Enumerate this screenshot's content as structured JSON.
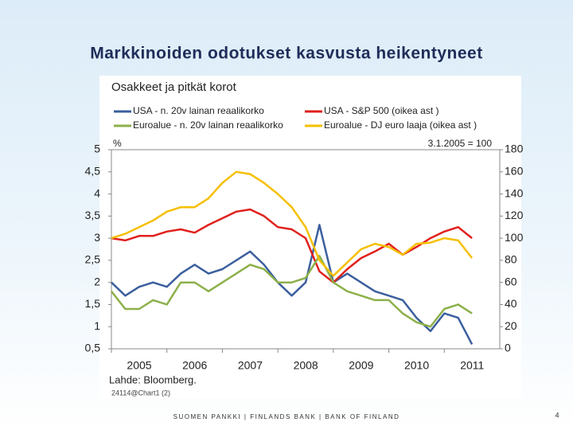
{
  "slide_title": "Markkinoiden odotukset kasvusta heikentyneet",
  "footer": "SUOMEN PANKKI | FINLANDS BANK | BANK OF FINLAND",
  "page_number": "4",
  "chart_data": {
    "type": "line",
    "title": "Osakkeet ja pitkät korot",
    "y_label": "%",
    "y2_label": "3.1.2005 = 100",
    "source": "Lahde: Bloomberg.",
    "chart_id": "24114@Chart1 (2)",
    "x": [
      2005,
      2005.25,
      2005.5,
      2005.75,
      2006,
      2006.25,
      2006.5,
      2006.75,
      2007,
      2007.25,
      2007.5,
      2007.75,
      2008,
      2008.25,
      2008.5,
      2008.75,
      2009,
      2009.25,
      2009.5,
      2009.75,
      2010,
      2010.25,
      2010.5,
      2010.75,
      2011,
      2011.25,
      2011.5
    ],
    "xlim": [
      2005,
      2012
    ],
    "xticks": [
      2005,
      2006,
      2007,
      2008,
      2009,
      2010,
      2011
    ],
    "ylim": [
      0.5,
      5
    ],
    "yticks": [
      {
        "value": 0.5,
        "label": "0,5"
      },
      1,
      {
        "value": 1.5,
        "label": "1,5"
      },
      2,
      {
        "value": 2.5,
        "label": "2,5"
      },
      3,
      {
        "value": 3.5,
        "label": "3,5"
      },
      4,
      {
        "value": 4.5,
        "label": "4,5"
      },
      5
    ],
    "y2lim": [
      0,
      180
    ],
    "y2ticks": [
      0,
      20,
      40,
      60,
      80,
      100,
      120,
      140,
      160,
      180
    ],
    "grid": false,
    "series": [
      {
        "name": "USA - n. 20v lainan reaalikorko",
        "color": "#3b5f9e",
        "axis": "y",
        "values": [
          2.0,
          1.7,
          1.9,
          2.0,
          1.9,
          2.2,
          2.4,
          2.2,
          2.3,
          2.5,
          2.7,
          2.4,
          2.0,
          1.7,
          2.0,
          3.3,
          2.0,
          2.2,
          2.0,
          1.8,
          1.7,
          1.6,
          1.2,
          0.9,
          1.3,
          1.2,
          0.6
        ]
      },
      {
        "name": "USA - S&P 500 (oikea ast )",
        "color": "#e0201c",
        "axis": "y2",
        "values": [
          100,
          98,
          102,
          102,
          106,
          108,
          105,
          112,
          118,
          124,
          126,
          120,
          110,
          108,
          100,
          70,
          60,
          72,
          82,
          88,
          95,
          85,
          92,
          100,
          106,
          110,
          100
        ]
      },
      {
        "name": "Euroalue - n. 20v lainan reaalikorko",
        "color": "#8db04a",
        "axis": "y",
        "values": [
          1.8,
          1.4,
          1.4,
          1.6,
          1.5,
          2.0,
          2.0,
          1.8,
          2.0,
          2.2,
          2.4,
          2.3,
          2.0,
          2.0,
          2.1,
          2.6,
          2.0,
          1.8,
          1.7,
          1.6,
          1.6,
          1.3,
          1.1,
          1.0,
          1.4,
          1.5,
          1.3
        ]
      },
      {
        "name": "Euroalue - DJ euro laaja (oikea ast )",
        "color": "#f5bf00",
        "axis": "y2",
        "values": [
          100,
          104,
          110,
          116,
          124,
          128,
          128,
          136,
          150,
          160,
          158,
          150,
          140,
          128,
          110,
          80,
          66,
          78,
          90,
          95,
          92,
          85,
          95,
          96,
          100,
          98,
          82
        ]
      }
    ]
  }
}
